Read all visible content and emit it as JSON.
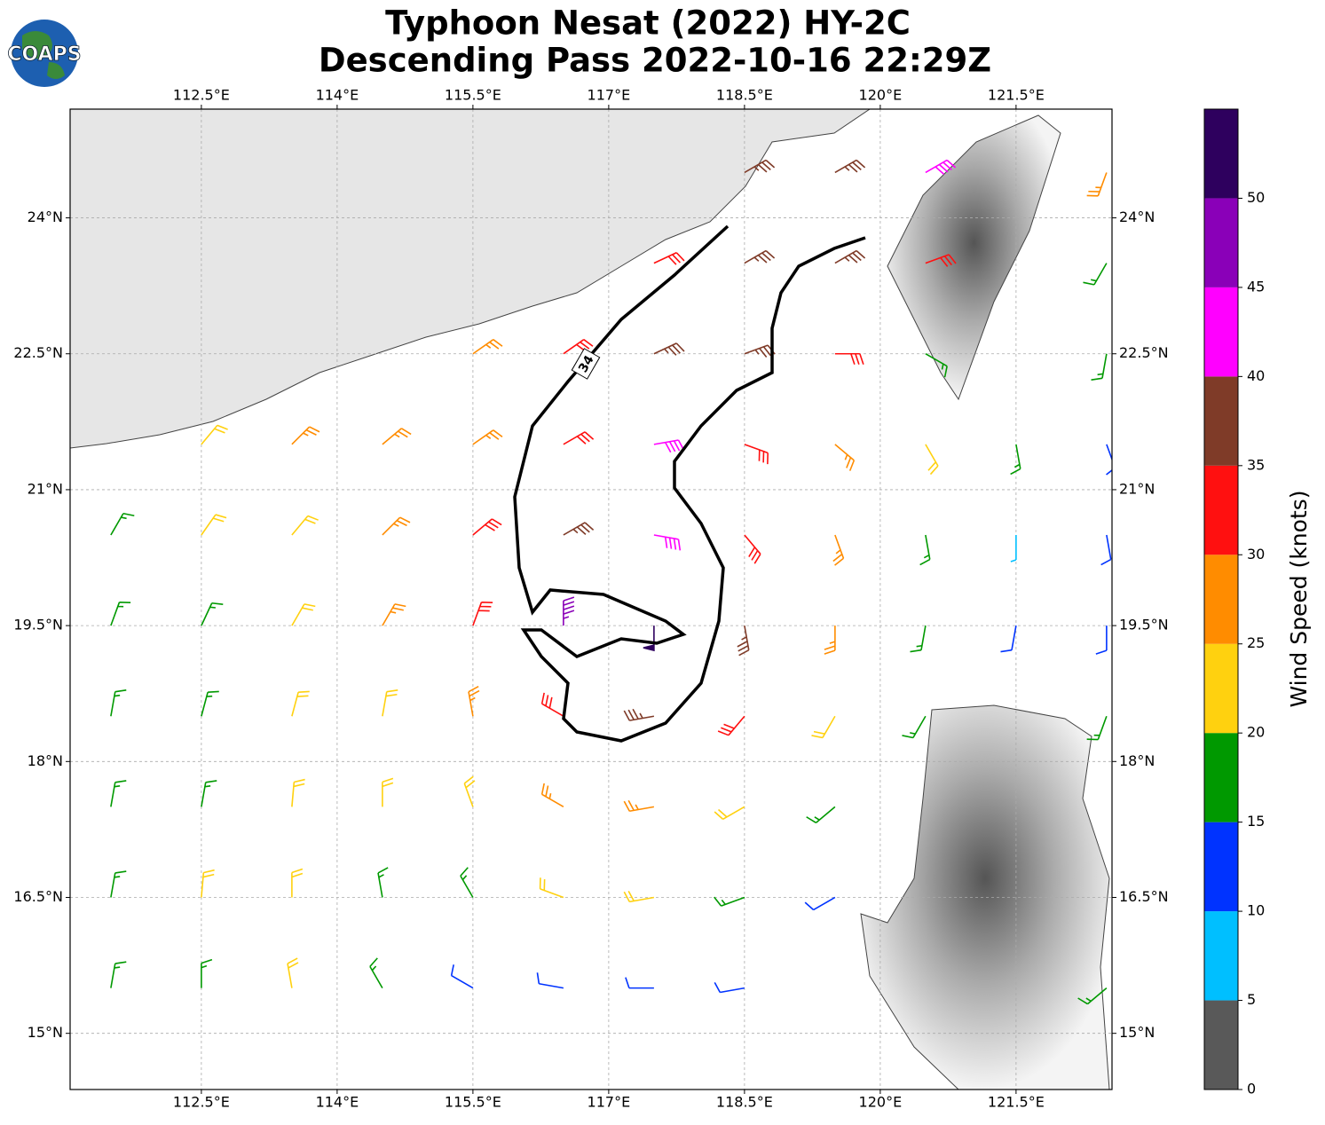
{
  "chart_data": {
    "type": "barbs",
    "title": "Typhoon Nesat (2022) HY-2C",
    "subtitle": "Descending Pass 2022-10-16 22:29Z",
    "logo": "COAPS",
    "xlim": [
      111.05,
      122.56
    ],
    "ylim": [
      14.38,
      25.2
    ],
    "xticks": [
      {
        "value": 112.5,
        "label": "112.5°E"
      },
      {
        "value": 114,
        "label": "114°E"
      },
      {
        "value": 115.5,
        "label": "115.5°E"
      },
      {
        "value": 117,
        "label": "117°E"
      },
      {
        "value": 118.5,
        "label": "118.5°E"
      },
      {
        "value": 120,
        "label": "120°E"
      },
      {
        "value": 121.5,
        "label": "121.5°E"
      }
    ],
    "yticks": [
      {
        "value": 15,
        "label": "15°N"
      },
      {
        "value": 16.5,
        "label": "16.5°N"
      },
      {
        "value": 18,
        "label": "18°N"
      },
      {
        "value": 19.5,
        "label": "19.5°N"
      },
      {
        "value": 21,
        "label": "21°N"
      },
      {
        "value": 22.5,
        "label": "22.5°N"
      },
      {
        "value": 24,
        "label": "24°N"
      }
    ],
    "grid": true,
    "contour_level": 34,
    "barbs": {
      "lon": [
        111.5,
        112.5,
        113.5,
        114.5,
        115.5,
        116.5,
        117.5,
        118.5,
        119.5,
        120.5,
        121.5,
        122.5
      ],
      "lat": [
        24.5,
        23.5,
        22.5,
        21.5,
        20.5,
        19.5,
        18.5,
        17.5,
        16.5,
        15.5
      ],
      "speed": [
        [
          null,
          null,
          null,
          null,
          null,
          null,
          null,
          37,
          37,
          42,
          null,
          25
        ],
        [
          null,
          null,
          null,
          null,
          null,
          null,
          32,
          37,
          37,
          32,
          null,
          17
        ],
        [
          null,
          null,
          null,
          null,
          27,
          30,
          37,
          37,
          32,
          17,
          null,
          17
        ],
        [
          null,
          22,
          27,
          27,
          27,
          32,
          42,
          32,
          27,
          22,
          17,
          12
        ],
        [
          17,
          22,
          22,
          27,
          32,
          37,
          42,
          32,
          27,
          17,
          7,
          12
        ],
        [
          17,
          17,
          22,
          27,
          32,
          47,
          52,
          37,
          27,
          17,
          12,
          12
        ],
        [
          17,
          17,
          22,
          22,
          27,
          32,
          37,
          32,
          22,
          17,
          null,
          17
        ],
        [
          17,
          17,
          22,
          22,
          22,
          27,
          27,
          22,
          17,
          null,
          null,
          null
        ],
        [
          17,
          22,
          22,
          17,
          17,
          22,
          22,
          17,
          12,
          null,
          null,
          null
        ],
        [
          17,
          17,
          22,
          17,
          12,
          12,
          12,
          12,
          null,
          null,
          null,
          17
        ]
      ],
      "direction": [
        [
          null,
          null,
          null,
          null,
          null,
          null,
          null,
          60,
          60,
          60,
          null,
          200
        ],
        [
          null,
          null,
          null,
          null,
          null,
          null,
          65,
          60,
          60,
          70,
          null,
          210
        ],
        [
          null,
          null,
          null,
          null,
          55,
          55,
          65,
          70,
          90,
          120,
          null,
          190
        ],
        [
          null,
          40,
          45,
          50,
          55,
          60,
          80,
          110,
          130,
          150,
          170,
          160
        ],
        [
          30,
          35,
          40,
          45,
          50,
          60,
          100,
          140,
          160,
          170,
          180,
          170
        ],
        [
          20,
          25,
          30,
          30,
          20,
          0,
          180,
          170,
          180,
          190,
          190,
          180
        ],
        [
          10,
          15,
          15,
          10,
          350,
          300,
          260,
          220,
          210,
          210,
          null,
          200
        ],
        [
          10,
          10,
          5,
          360,
          340,
          300,
          260,
          240,
          230,
          null,
          null,
          null
        ],
        [
          10,
          5,
          0,
          350,
          330,
          290,
          260,
          250,
          240,
          null,
          null,
          null
        ],
        [
          10,
          0,
          350,
          330,
          300,
          280,
          270,
          260,
          null,
          null,
          null,
          230
        ]
      ]
    },
    "colorbar": {
      "label": "Wind Speed (knots)",
      "bounds": [
        0,
        5,
        10,
        15,
        20,
        25,
        30,
        35,
        40,
        45,
        50,
        55
      ],
      "colors": [
        "#595959",
        "#00bfff",
        "#0033ff",
        "#009900",
        "#ffd10f",
        "#ff8c00",
        "#ff1010",
        "#7f3b28",
        "#ff00ff",
        "#8a00b8",
        "#2e005e"
      ],
      "ticks": [
        0,
        5,
        10,
        15,
        20,
        25,
        30,
        35,
        40,
        45,
        50
      ]
    }
  }
}
